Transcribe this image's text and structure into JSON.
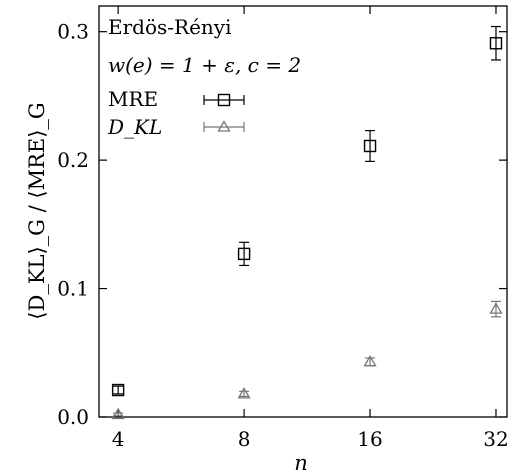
{
  "chart_data": {
    "type": "scatter",
    "title": "",
    "annotations": [
      "Erdös-Rényi",
      "w(e) = 1 + ε, c = 2"
    ],
    "xlabel": "n",
    "ylabel": "⟨D_KL⟩_G / ⟨MRE⟩_G",
    "x_scale": "log2",
    "x_ticks": [
      4,
      8,
      16,
      32
    ],
    "x_tick_labels": [
      "4",
      "8",
      "16",
      "32"
    ],
    "xlim": [
      3.6,
      34
    ],
    "y_ticks": [
      0.0,
      0.1,
      0.2,
      0.3
    ],
    "y_tick_labels": [
      "0.0",
      "0.1",
      "0.2",
      "0.3"
    ],
    "ylim": [
      0.0,
      0.32
    ],
    "grid": false,
    "legend_position": "top-left",
    "series": [
      {
        "name": "MRE",
        "marker": "square",
        "color": "#000000",
        "x": [
          4,
          8,
          16,
          32
        ],
        "y": [
          0.021,
          0.127,
          0.211,
          0.291
        ],
        "yerr": [
          0.003,
          0.009,
          0.012,
          0.013
        ]
      },
      {
        "name": "D_KL",
        "marker": "triangle",
        "color": "#777777",
        "x": [
          4,
          8,
          16,
          32
        ],
        "y": [
          0.002,
          0.018,
          0.043,
          0.084
        ],
        "yerr": [
          0.001,
          0.002,
          0.003,
          0.006
        ]
      }
    ]
  }
}
